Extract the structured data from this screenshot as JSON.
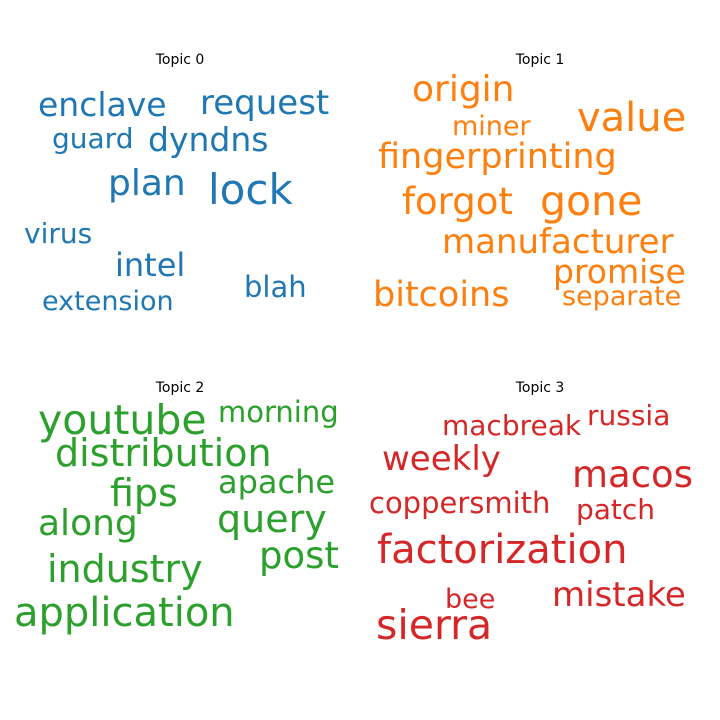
{
  "topics": [
    {
      "title": "Topic 0",
      "color": "#1f77b4",
      "words": [
        "enclave",
        "request",
        "guard",
        "dyndns",
        "plan",
        "lock",
        "virus",
        "intel",
        "blah",
        "extension"
      ]
    },
    {
      "title": "Topic 1",
      "color": "#ff7f0e",
      "words": [
        "origin",
        "value",
        "miner",
        "fingerprinting",
        "forgot",
        "gone",
        "manufacturer",
        "promise",
        "bitcoins",
        "separate"
      ]
    },
    {
      "title": "Topic 2",
      "color": "#2ca02c",
      "words": [
        "youtube",
        "morning",
        "distribution",
        "apache",
        "fips",
        "query",
        "along",
        "post",
        "industry",
        "application"
      ]
    },
    {
      "title": "Topic 3",
      "color": "#d62728",
      "words": [
        "macbreak",
        "russia",
        "weekly",
        "macos",
        "coppersmith",
        "patch",
        "factorization",
        "bee",
        "mistake",
        "sierra"
      ]
    }
  ]
}
